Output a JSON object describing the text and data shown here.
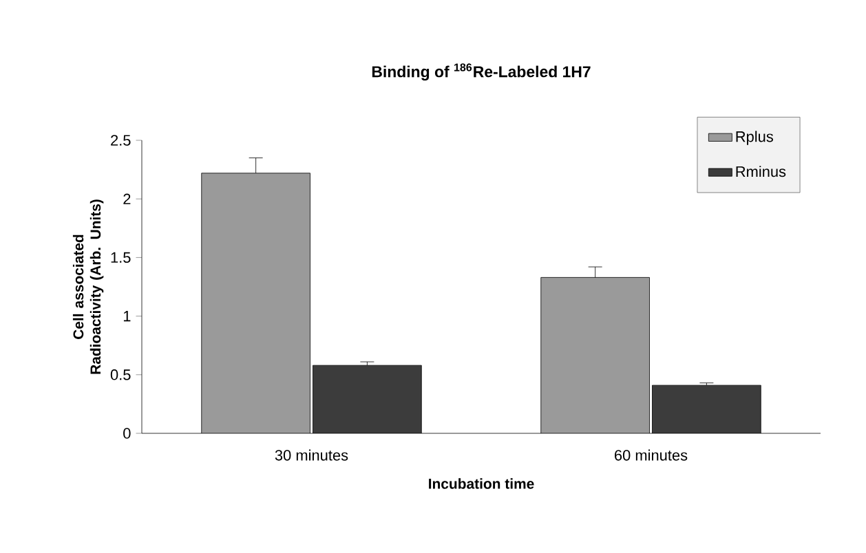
{
  "chart_data": {
    "type": "bar",
    "title": "Binding of $^{186}$Re-Labeled 1H7",
    "xlabel": "Incubation time",
    "ylabel": "Cell associated Radioactivity (Arb. Units)",
    "categories": [
      "30 minutes",
      "60 minutes"
    ],
    "series": [
      {
        "name": "Rplus",
        "color": "#9a9a9a",
        "values": [
          2.22,
          1.33
        ],
        "errors": [
          0.13,
          0.09
        ]
      },
      {
        "name": "Rminus",
        "color": "#3c3c3c",
        "values": [
          0.58,
          0.41
        ],
        "errors": [
          0.03,
          0.02
        ]
      }
    ],
    "ylim": [
      0,
      2.5
    ],
    "yticks": [
      0,
      0.5,
      1,
      1.5,
      2,
      2.5
    ],
    "legend": "top right"
  }
}
